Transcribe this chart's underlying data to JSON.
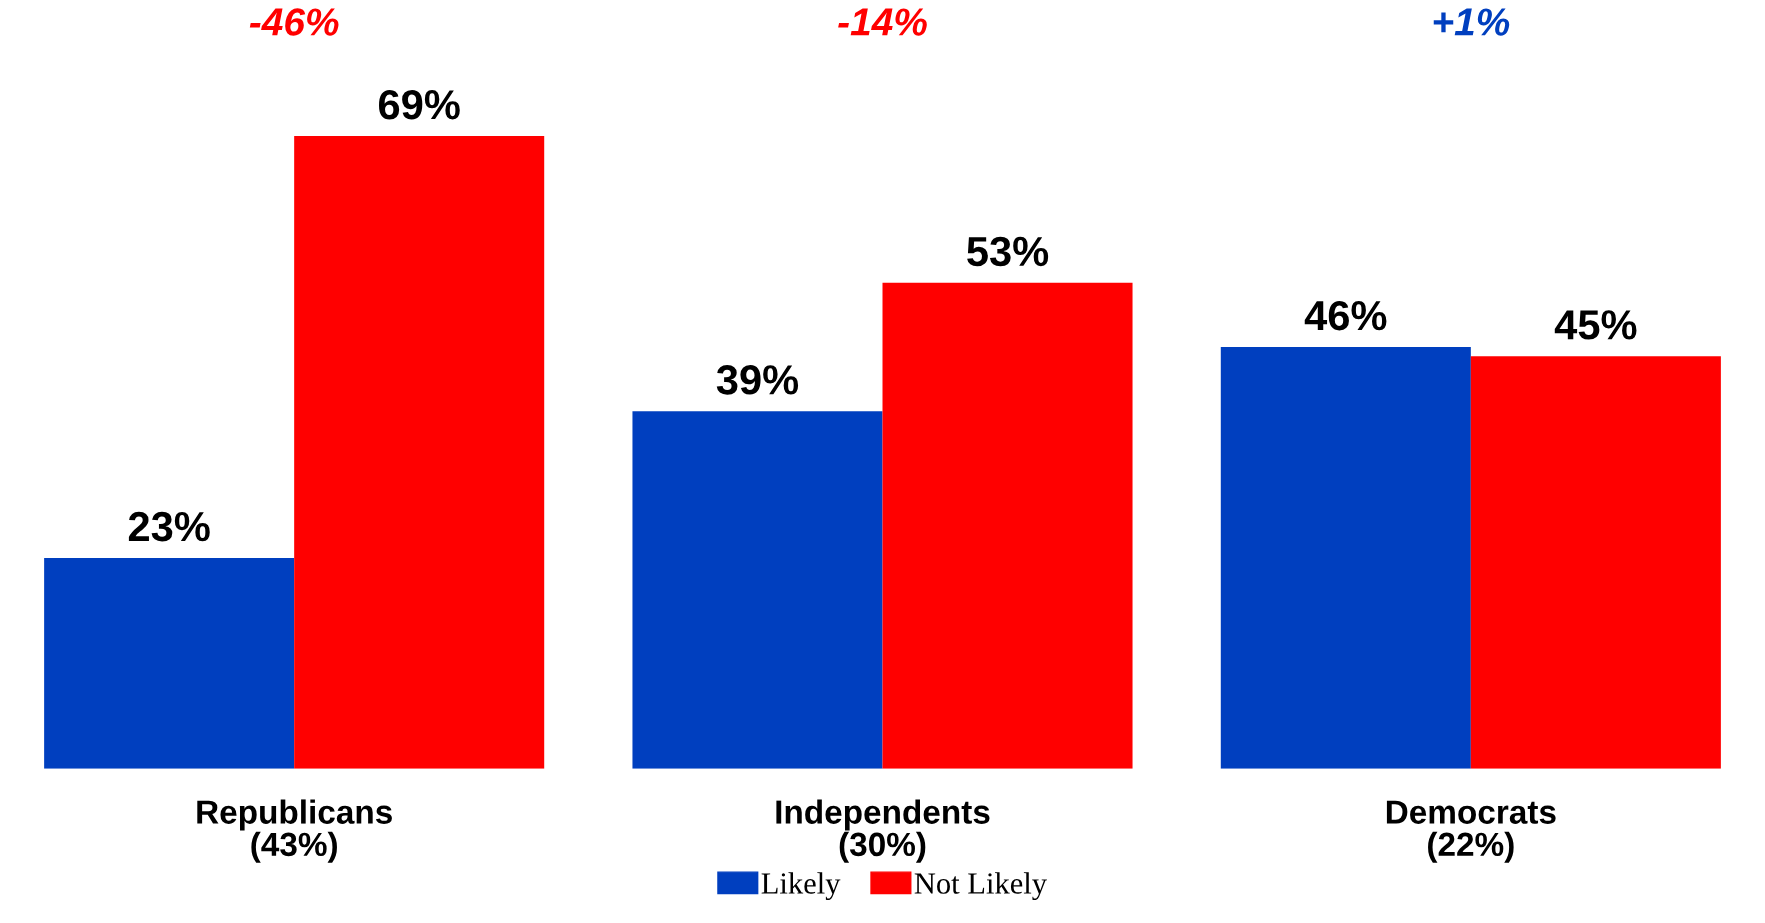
{
  "chart_data": {
    "type": "bar",
    "categories": [
      "Republicans\n(43%)",
      "Independents\n(30%)",
      "Democrats\n(22%)"
    ],
    "series": [
      {
        "name": "Likely",
        "color": "#003fbf",
        "values": [
          23,
          39,
          46
        ],
        "value_labels": [
          "23%",
          "39%",
          "46%"
        ]
      },
      {
        "name": "Not Likely",
        "color": "#ff0000",
        "values": [
          69,
          53,
          45
        ],
        "value_labels": [
          "69%",
          "53%",
          "45%"
        ]
      }
    ],
    "annotations": [
      "-46%",
      "-14%",
      "+1%"
    ],
    "legend": "bottom",
    "grid": false
  }
}
